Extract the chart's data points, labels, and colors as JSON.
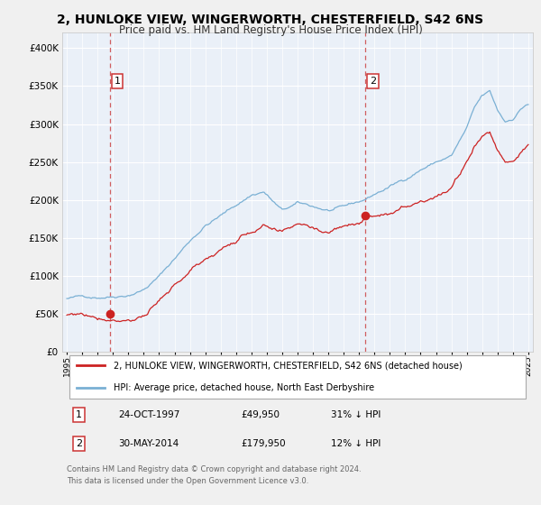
{
  "title": "2, HUNLOKE VIEW, WINGERWORTH, CHESTERFIELD, S42 6NS",
  "subtitle": "Price paid vs. HM Land Registry's House Price Index (HPI)",
  "title_fontsize": 10,
  "subtitle_fontsize": 8.5,
  "bg_color": "#f0f0f0",
  "plot_bg_color": "#eaf0f8",
  "sale1_date": 1997.82,
  "sale1_price": 49950,
  "sale2_date": 2014.42,
  "sale2_price": 179950,
  "legend_entries": [
    "2, HUNLOKE VIEW, WINGERWORTH, CHESTERFIELD, S42 6NS (detached house)",
    "HPI: Average price, detached house, North East Derbyshire"
  ],
  "table_rows": [
    [
      "1",
      "24-OCT-1997",
      "£49,950",
      "31% ↓ HPI"
    ],
    [
      "2",
      "30-MAY-2014",
      "£179,950",
      "12% ↓ HPI"
    ]
  ],
  "footnote": "Contains HM Land Registry data © Crown copyright and database right 2024.\nThis data is licensed under the Open Government Licence v3.0.",
  "red_line_color": "#cc2222",
  "blue_line_color": "#7ab0d4",
  "marker_color": "#cc2222",
  "dashed_line_color": "#cc4444",
  "ylim": [
    0,
    420000
  ],
  "yticks": [
    0,
    50000,
    100000,
    150000,
    200000,
    250000,
    300000,
    350000,
    400000
  ],
  "ytick_labels": [
    "£0",
    "£50K",
    "£100K",
    "£150K",
    "£200K",
    "£250K",
    "£300K",
    "£350K",
    "£400K"
  ],
  "xlim_start": 1994.7,
  "xlim_end": 2025.3,
  "hpi_anchors_t": [
    1995.0,
    1996.0,
    1997.0,
    1998.0,
    1999.0,
    2000.0,
    2001.0,
    2002.0,
    2003.0,
    2004.0,
    2005.5,
    2007.0,
    2007.8,
    2009.0,
    2010.0,
    2011.0,
    2012.0,
    2013.0,
    2014.0,
    2014.5,
    2015.0,
    2016.0,
    2017.0,
    2018.0,
    2019.0,
    2020.0,
    2021.0,
    2021.5,
    2022.0,
    2022.5,
    2023.0,
    2023.5,
    2024.0,
    2024.5,
    2024.9
  ],
  "hpi_anchors_v": [
    70000,
    72000,
    73000,
    76000,
    80000,
    88000,
    105000,
    128000,
    152000,
    173000,
    192000,
    213000,
    218000,
    192000,
    200000,
    195000,
    190000,
    192000,
    198000,
    202000,
    208000,
    218000,
    228000,
    242000,
    252000,
    260000,
    295000,
    320000,
    335000,
    340000,
    315000,
    300000,
    305000,
    318000,
    325000
  ]
}
